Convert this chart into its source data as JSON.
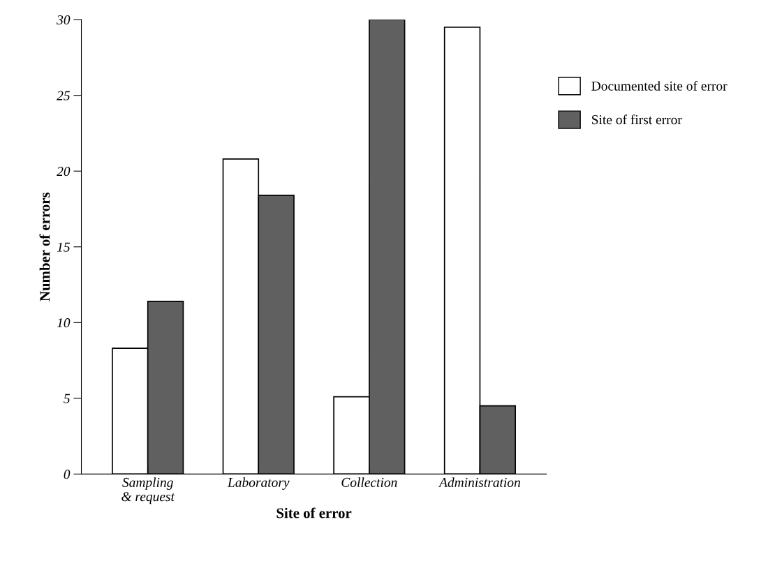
{
  "chart_data": {
    "type": "bar",
    "xlabel": "Site of error",
    "ylabel": "Number of errors",
    "categories": [
      "Sampling\n& request",
      "Laboratory",
      "Collection",
      "Administration"
    ],
    "series": [
      {
        "name": "Documented site of error",
        "color": "#ffffff",
        "values": [
          8.3,
          20.8,
          5.1,
          29.5
        ]
      },
      {
        "name": "Site of first error",
        "color": "#606060",
        "values": [
          11.4,
          18.4,
          30,
          4.5
        ]
      }
    ],
    "ylim": [
      0,
      30
    ],
    "yticks": [
      0,
      5,
      10,
      15,
      20,
      25,
      30
    ],
    "grid": false,
    "legend": "right"
  }
}
